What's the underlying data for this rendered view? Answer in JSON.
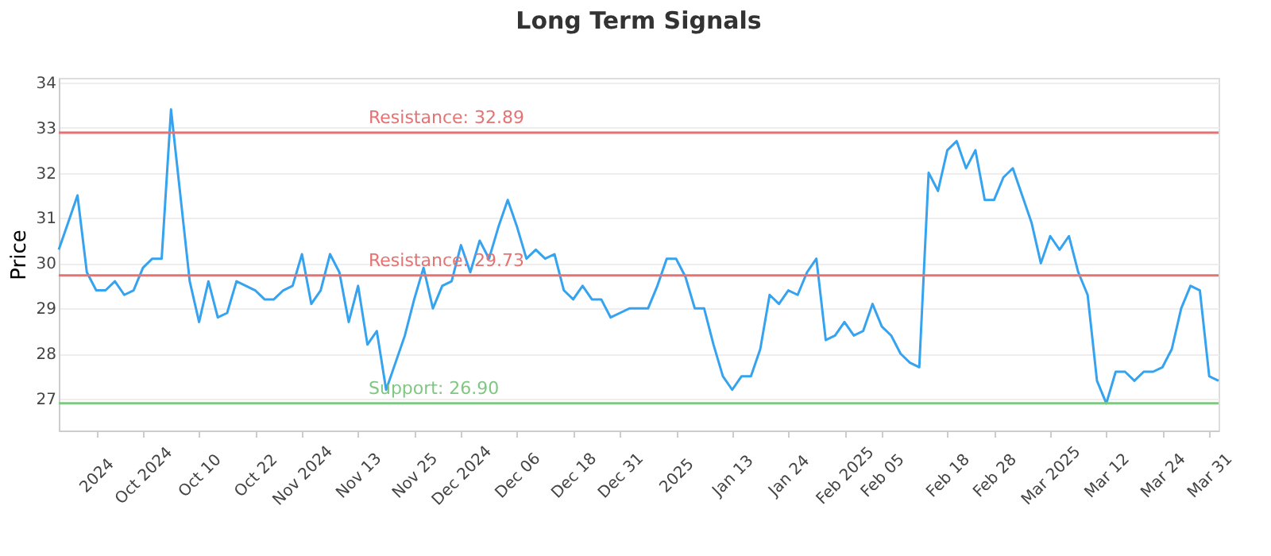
{
  "chart_data": {
    "type": "line",
    "title": "Long Term Signals",
    "ylabel": "Price",
    "categories": [
      null,
      null,
      null,
      null,
      "2024",
      null,
      null,
      null,
      null,
      "Oct 2024",
      null,
      null,
      null,
      null,
      null,
      "Oct 10",
      null,
      null,
      null,
      null,
      null,
      "Oct 22",
      null,
      null,
      null,
      null,
      "Nov 2024",
      null,
      null,
      null,
      null,
      null,
      "Nov 13",
      null,
      null,
      null,
      null,
      null,
      "Nov 25",
      null,
      null,
      null,
      null,
      "Dec 2024",
      null,
      null,
      null,
      null,
      null,
      "Dec 06",
      null,
      null,
      null,
      null,
      null,
      "Dec 18",
      null,
      null,
      null,
      null,
      "Dec 31",
      null,
      null,
      null,
      null,
      null,
      "2025",
      null,
      null,
      null,
      null,
      null,
      "Jan 13",
      null,
      null,
      null,
      null,
      null,
      "Jan 24",
      null,
      null,
      null,
      null,
      null,
      "Feb 2025",
      null,
      null,
      null,
      "Feb 05",
      null,
      null,
      null,
      null,
      null,
      null,
      "Feb 18",
      null,
      null,
      null,
      null,
      "Feb 28",
      null,
      null,
      null,
      null,
      null,
      "Mar 2025",
      null,
      null,
      null,
      null,
      null,
      "Mar 12",
      null,
      null,
      null,
      null,
      null,
      "Mar 24",
      null,
      null,
      null,
      null,
      "Mar 31",
      null
    ],
    "series": [
      {
        "color": "#35a3f0",
        "values": [
          30.3,
          30.9,
          31.5,
          29.8,
          29.4,
          29.4,
          29.6,
          29.3,
          29.4,
          29.9,
          30.1,
          30.1,
          33.4,
          31.5,
          29.6,
          28.7,
          29.6,
          28.8,
          28.9,
          29.6,
          29.5,
          29.4,
          29.2,
          29.2,
          29.4,
          29.5,
          30.2,
          29.1,
          29.4,
          30.2,
          29.8,
          28.7,
          29.5,
          28.2,
          28.5,
          27.2,
          27.8,
          28.4,
          29.2,
          29.9,
          29.0,
          29.5,
          29.6,
          30.4,
          29.8,
          30.5,
          30.1,
          30.8,
          31.4,
          30.8,
          30.1,
          30.3,
          30.1,
          30.2,
          29.4,
          29.2,
          29.5,
          29.2,
          29.2,
          28.8,
          28.9,
          29.0,
          29.0,
          29.0,
          29.5,
          30.1,
          30.1,
          29.7,
          29.0,
          29.0,
          28.2,
          27.5,
          27.2,
          27.5,
          27.5,
          28.1,
          29.3,
          29.1,
          29.4,
          29.3,
          29.8,
          30.1,
          28.3,
          28.4,
          28.7,
          28.4,
          28.5,
          29.1,
          28.6,
          28.4,
          28.0,
          27.8,
          27.7,
          32.0,
          31.6,
          32.5,
          32.7,
          32.1,
          32.5,
          31.4,
          31.4,
          31.9,
          32.1,
          31.5,
          30.9,
          30.0,
          30.6,
          30.3,
          30.6,
          29.8,
          29.3,
          27.4,
          26.9,
          27.6,
          27.6,
          27.4,
          27.6,
          27.6,
          27.7,
          28.1,
          29.0,
          29.5,
          29.4,
          27.5,
          27.4
        ]
      }
    ],
    "ylim": [
      26.3,
      34.1
    ],
    "yticks": [
      27,
      28,
      29,
      30,
      31,
      32,
      33,
      34
    ],
    "grid": "y",
    "ref_lines": [
      {
        "axis": "y",
        "value": 32.89,
        "label": "Resistance: 32.89",
        "color": "#e57373"
      },
      {
        "axis": "y",
        "value": 29.73,
        "label": "Resistance: 29.73",
        "color": "#e57373"
      },
      {
        "axis": "y",
        "value": 26.9,
        "label": "Support: 26.90",
        "color": "#81c784"
      }
    ]
  }
}
